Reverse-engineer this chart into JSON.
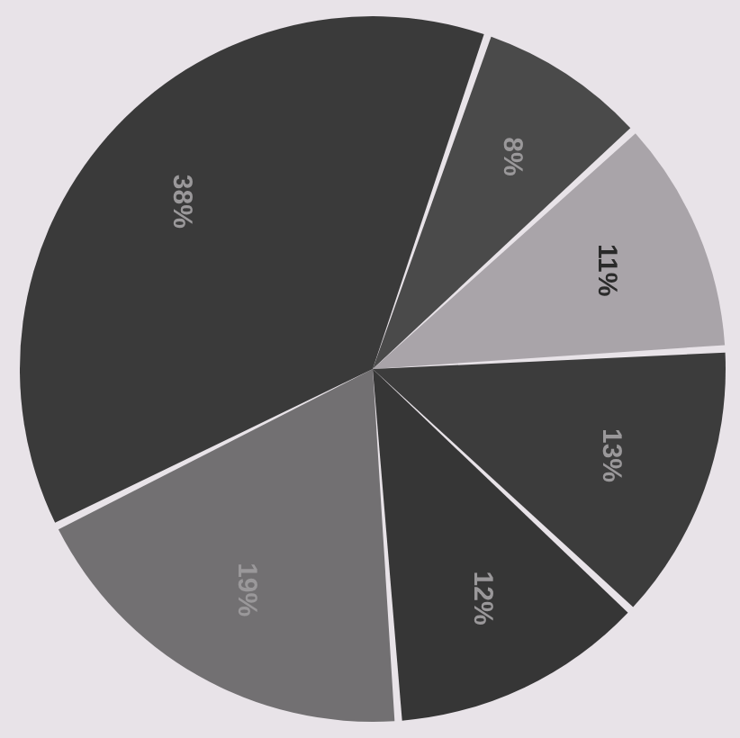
{
  "chart_data": {
    "type": "pie",
    "categories": [
      null,
      null,
      null,
      null,
      null,
      null
    ],
    "values": [
      8,
      11,
      13,
      12,
      19,
      38
    ],
    "colors": [
      "#4a4a4a",
      "#a9a4a9",
      "#3c3c3c",
      "#363636",
      "#727072",
      "#3a3a3a"
    ],
    "value_labels": [
      "8%",
      "11%",
      "13%",
      "12%",
      "19%",
      "38%"
    ]
  }
}
